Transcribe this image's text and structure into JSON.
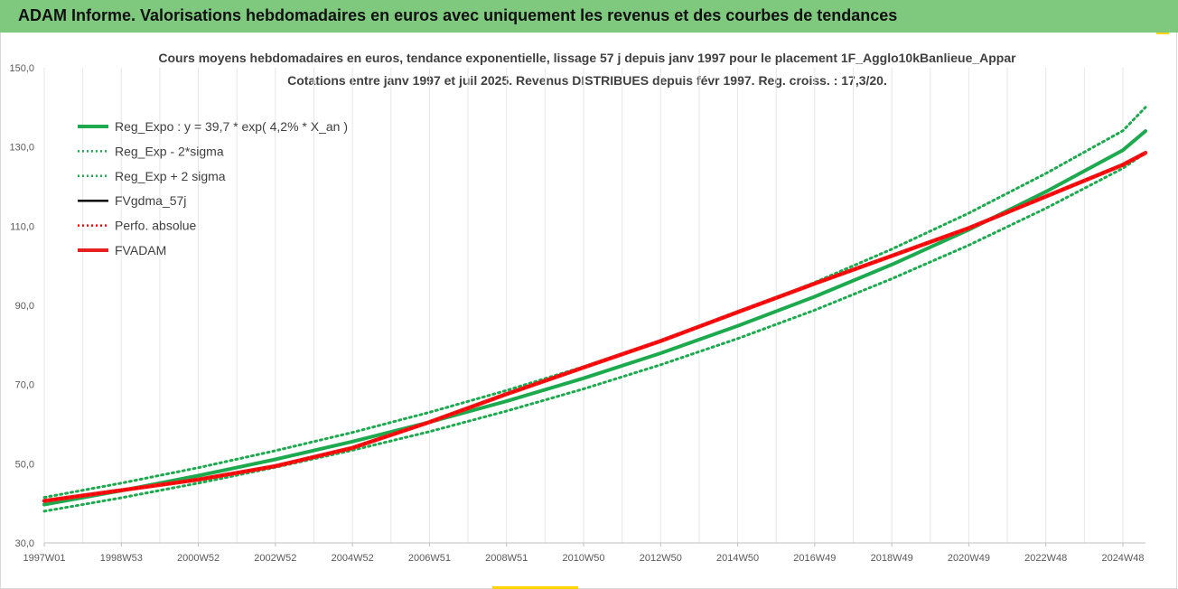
{
  "header": {
    "title": "ADAM Informe. Valorisations hebdomadaires en euros avec uniquement les revenus et des courbes de tendances"
  },
  "chart_data": {
    "type": "line",
    "title": "Cours moyens hebdomadaires en euros, tendance exponentielle, lissage 57 j depuis janv 1997 pour le placement 1F_Agglo10kBanlieue_Appar",
    "subtitle": "Cotations entre janv 1997 et juil 2025. Revenus DISTRIBUES depuis févr 1997. Reg. croiss. : 17,3/20.",
    "xlabel": "",
    "ylabel": "",
    "ylim": [
      30,
      150
    ],
    "yticks": [
      "30,0",
      "50,0",
      "70,0",
      "90,0",
      "110,0",
      "130,0",
      "150,0"
    ],
    "xticks": [
      "1997W01",
      "1998W53",
      "2000W52",
      "2002W52",
      "2004W52",
      "2006W51",
      "2008W51",
      "2010W50",
      "2012W50",
      "2014W50",
      "2016W49",
      "2018W49",
      "2020W49",
      "2022W48",
      "2024W48"
    ],
    "grid": "vertical",
    "legend_position": "top-left",
    "series": [
      {
        "name": "Reg_Expo : y = 39,7 * exp( 4,2% *  X_an )",
        "color": "#1daa4f",
        "style": "solid",
        "x": [
          "1997W01",
          "1998W53",
          "2000W52",
          "2002W52",
          "2004W52",
          "2006W51",
          "2008W51",
          "2010W50",
          "2012W50",
          "2014W50",
          "2016W49",
          "2018W49",
          "2020W49",
          "2022W48",
          "2024W48",
          "2025W29"
        ],
        "values": [
          39.7,
          43.2,
          47.0,
          51.1,
          55.6,
          60.5,
          65.8,
          71.6,
          77.9,
          84.8,
          92.2,
          100.3,
          109.1,
          118.7,
          129.2,
          134.0
        ]
      },
      {
        "name": "Reg_Exp - 2*sigma",
        "color": "#1daa4f",
        "style": "dotted",
        "x": [
          "1997W01",
          "1998W53",
          "2000W52",
          "2002W52",
          "2004W52",
          "2006W51",
          "2008W51",
          "2010W50",
          "2012W50",
          "2014W50",
          "2016W49",
          "2018W49",
          "2020W49",
          "2022W48",
          "2024W48",
          "2025W29"
        ],
        "values": [
          38.0,
          41.4,
          45.1,
          49.1,
          53.4,
          58.1,
          63.3,
          68.9,
          75.0,
          81.6,
          88.8,
          96.7,
          105.2,
          114.5,
          124.6,
          128.5
        ]
      },
      {
        "name": "Reg_Exp + 2 sigma",
        "color": "#1daa4f",
        "style": "dotted",
        "x": [
          "1997W01",
          "1998W53",
          "2000W52",
          "2002W52",
          "2004W52",
          "2006W51",
          "2008W51",
          "2010W50",
          "2012W50",
          "2014W50",
          "2016W49",
          "2018W49",
          "2020W49",
          "2022W48",
          "2024W48",
          "2025W29"
        ],
        "values": [
          41.5,
          45.1,
          49.0,
          53.3,
          57.9,
          63.0,
          68.5,
          74.5,
          81.0,
          88.1,
          95.8,
          104.2,
          113.3,
          123.3,
          134.1,
          140.0
        ]
      },
      {
        "name": "FVgdma_57j",
        "color": "#000000",
        "style": "solid",
        "x": [
          "1997W01",
          "1998W53",
          "2000W52",
          "2002W52",
          "2004W52",
          "2006W51",
          "2008W51",
          "2010W50",
          "2012W50",
          "2014W50",
          "2016W49",
          "2018W49",
          "2020W49",
          "2022W48",
          "2024W48",
          "2025W29"
        ],
        "values": [
          40.6,
          43.3,
          46.0,
          49.4,
          54.0,
          60.5,
          67.6,
          74.3,
          81.0,
          88.3,
          95.5,
          102.5,
          109.5,
          117.5,
          125.5,
          128.5
        ]
      },
      {
        "name": "Perfo. absolue",
        "color": "#ff0000",
        "style": "dotted",
        "x": [
          "1997W01",
          "1998W53",
          "2000W52",
          "2002W52",
          "2004W52",
          "2006W51",
          "2008W51",
          "2010W50",
          "2012W50",
          "2014W50",
          "2016W49",
          "2018W49",
          "2020W49",
          "2022W48",
          "2024W48",
          "2025W29"
        ],
        "values": [
          40.6,
          43.3,
          46.0,
          49.4,
          54.0,
          60.5,
          67.6,
          74.3,
          81.0,
          88.3,
          95.5,
          102.5,
          109.5,
          117.5,
          125.5,
          128.5
        ]
      },
      {
        "name": "FVADAM",
        "color": "#e8201f",
        "style": "solid",
        "x": [
          "1997W01",
          "1998W53",
          "2000W52",
          "2002W52",
          "2004W52",
          "2006W51",
          "2008W51",
          "2010W50",
          "2012W50",
          "2014W50",
          "2016W49",
          "2018W49",
          "2020W49",
          "2022W48",
          "2024W48",
          "2025W29"
        ],
        "values": [
          40.6,
          43.3,
          46.0,
          49.4,
          54.0,
          60.5,
          67.6,
          74.3,
          81.0,
          88.3,
          95.5,
          102.5,
          109.5,
          117.5,
          125.5,
          128.5
        ]
      }
    ]
  }
}
